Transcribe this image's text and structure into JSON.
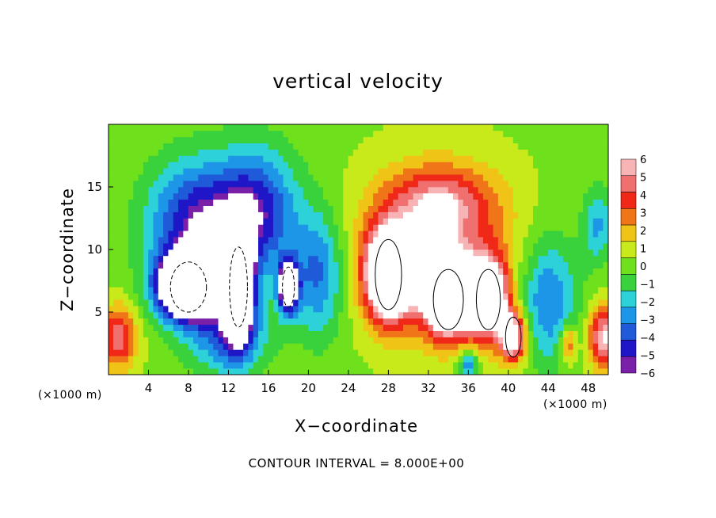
{
  "chart_data": {
    "type": "heatmap",
    "title": "vertical velocity",
    "xlabel": "X−coordinate",
    "ylabel": "Z−coordinate",
    "x_unit_left": "(×1000 m)",
    "x_unit_right": "(×1000 m)",
    "footnote": "CONTOUR INTERVAL = 8.000E+00",
    "xlim": [
      0,
      50
    ],
    "ylim": [
      0,
      20
    ],
    "x_ticks": [
      4,
      8,
      12,
      16,
      20,
      24,
      28,
      32,
      36,
      40,
      44,
      48
    ],
    "y_ticks": [
      5,
      10,
      15
    ],
    "colorbar": {
      "ticks": [
        "6",
        "5",
        "4",
        "3",
        "2",
        "1",
        "0",
        "−1",
        "−2",
        "−3",
        "−4",
        "−5",
        "−6"
      ],
      "range": [
        -6,
        6
      ],
      "above_max_color": "#ffffff",
      "below_min_color": "#ffffff"
    },
    "field_features": [
      {
        "name": "downdraft",
        "center": [
          9,
          12
        ],
        "spread": [
          5,
          5
        ],
        "value": -6
      },
      {
        "name": "downdraft",
        "center": [
          15,
          13
        ],
        "spread": [
          4,
          5
        ],
        "value": -5
      },
      {
        "name": "downdraft",
        "center": [
          21,
          8
        ],
        "spread": [
          2.5,
          5
        ],
        "value": -4
      },
      {
        "name": "downdraft",
        "center": [
          12,
          3
        ],
        "spread": [
          4,
          3
        ],
        "value": -4
      },
      {
        "name": "downdraft",
        "center": [
          44,
          6
        ],
        "spread": [
          3,
          5
        ],
        "value": -4
      },
      {
        "name": "downdraft",
        "center": [
          49,
          12
        ],
        "spread": [
          1.5,
          3
        ],
        "value": -3
      },
      {
        "name": "downdraft",
        "center": [
          36,
          0.8
        ],
        "spread": [
          1,
          1.2
        ],
        "value": -4
      },
      {
        "name": "strong downdraft",
        "center": [
          8,
          7
        ],
        "spread": [
          3,
          2.5
        ],
        "value": -14
      },
      {
        "name": "strong downdraft",
        "center": [
          13,
          7
        ],
        "spread": [
          1.5,
          4
        ],
        "value": -12
      },
      {
        "name": "strong downdraft",
        "center": [
          18,
          7
        ],
        "spread": [
          1,
          2
        ],
        "value": -10
      },
      {
        "name": "updraft",
        "center": [
          33,
          10
        ],
        "spread": [
          7,
          6
        ],
        "value": 5
      },
      {
        "name": "updraft",
        "center": [
          33,
          14
        ],
        "spread": [
          5,
          2.5
        ],
        "value": 3
      },
      {
        "name": "strong updraft",
        "center": [
          28,
          8
        ],
        "spread": [
          2.2,
          3.5
        ],
        "value": 11
      },
      {
        "name": "strong updraft",
        "center": [
          34,
          6
        ],
        "spread": [
          2.5,
          3
        ],
        "value": 9
      },
      {
        "name": "strong updraft",
        "center": [
          38,
          6
        ],
        "spread": [
          2,
          3
        ],
        "value": 9
      },
      {
        "name": "strong updraft",
        "center": [
          40.5,
          3
        ],
        "spread": [
          1.3,
          2
        ],
        "value": 8
      },
      {
        "name": "updraft",
        "center": [
          1,
          3
        ],
        "spread": [
          1.8,
          2.5
        ],
        "value": 5
      },
      {
        "name": "updraft",
        "center": [
          49.5,
          3
        ],
        "spread": [
          1.5,
          2.5
        ],
        "value": 6
      },
      {
        "name": "updraft",
        "center": [
          46,
          2.5
        ],
        "spread": [
          0.8,
          1.5
        ],
        "value": 4
      }
    ]
  }
}
